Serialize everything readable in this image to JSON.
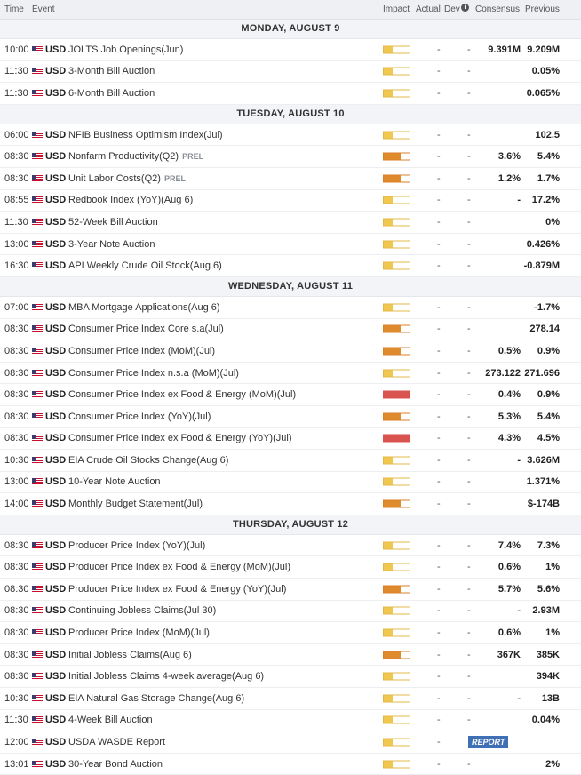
{
  "header": {
    "time": "Time",
    "event": "Event",
    "impact": "Impact",
    "actual": "Actual",
    "dev": "Dev",
    "info": "i",
    "consensus": "Consensus",
    "previous": "Previous"
  },
  "days": [
    {
      "label": "MONDAY, AUGUST 9",
      "events": [
        {
          "time": "10:00",
          "cur": "USD",
          "name": "JOLTS Job Openings(Jun)",
          "tag": "",
          "impact": "low",
          "actual": "-",
          "dev": "-",
          "cons": "9.391M",
          "prev": "9.209M"
        },
        {
          "time": "11:30",
          "cur": "USD",
          "name": "3-Month Bill Auction",
          "tag": "",
          "impact": "low",
          "actual": "-",
          "dev": "-",
          "cons": "",
          "prev": "0.05%"
        },
        {
          "time": "11:30",
          "cur": "USD",
          "name": "6-Month Bill Auction",
          "tag": "",
          "impact": "low",
          "actual": "-",
          "dev": "-",
          "cons": "",
          "prev": "0.065%"
        }
      ]
    },
    {
      "label": "TUESDAY, AUGUST 10",
      "events": [
        {
          "time": "06:00",
          "cur": "USD",
          "name": "NFIB Business Optimism Index(Jul)",
          "tag": "",
          "impact": "low",
          "actual": "-",
          "dev": "-",
          "cons": "",
          "prev": "102.5"
        },
        {
          "time": "08:30",
          "cur": "USD",
          "name": "Nonfarm Productivity(Q2)",
          "tag": "PREL",
          "impact": "med",
          "actual": "-",
          "dev": "-",
          "cons": "3.6%",
          "prev": "5.4%"
        },
        {
          "time": "08:30",
          "cur": "USD",
          "name": "Unit Labor Costs(Q2)",
          "tag": "PREL",
          "impact": "med",
          "actual": "-",
          "dev": "-",
          "cons": "1.2%",
          "prev": "1.7%"
        },
        {
          "time": "08:55",
          "cur": "USD",
          "name": "Redbook Index (YoY)(Aug 6)",
          "tag": "",
          "impact": "low",
          "actual": "-",
          "dev": "-",
          "cons": "-",
          "prev": "17.2%"
        },
        {
          "time": "11:30",
          "cur": "USD",
          "name": "52-Week Bill Auction",
          "tag": "",
          "impact": "low",
          "actual": "-",
          "dev": "-",
          "cons": "",
          "prev": "0%"
        },
        {
          "time": "13:00",
          "cur": "USD",
          "name": "3-Year Note Auction",
          "tag": "",
          "impact": "low",
          "actual": "-",
          "dev": "-",
          "cons": "",
          "prev": "0.426%"
        },
        {
          "time": "16:30",
          "cur": "USD",
          "name": "API Weekly Crude Oil Stock(Aug 6)",
          "tag": "",
          "impact": "low",
          "actual": "-",
          "dev": "-",
          "cons": "",
          "prev": "-0.879M"
        }
      ]
    },
    {
      "label": "WEDNESDAY, AUGUST 11",
      "events": [
        {
          "time": "07:00",
          "cur": "USD",
          "name": "MBA Mortgage Applications(Aug 6)",
          "tag": "",
          "impact": "low",
          "actual": "-",
          "dev": "-",
          "cons": "",
          "prev": "-1.7%"
        },
        {
          "time": "08:30",
          "cur": "USD",
          "name": "Consumer Price Index Core s.a(Jul)",
          "tag": "",
          "impact": "med",
          "actual": "-",
          "dev": "-",
          "cons": "",
          "prev": "278.14"
        },
        {
          "time": "08:30",
          "cur": "USD",
          "name": "Consumer Price Index (MoM)(Jul)",
          "tag": "",
          "impact": "med",
          "actual": "-",
          "dev": "-",
          "cons": "0.5%",
          "prev": "0.9%"
        },
        {
          "time": "08:30",
          "cur": "USD",
          "name": "Consumer Price Index n.s.a (MoM)(Jul)",
          "tag": "",
          "impact": "low",
          "actual": "-",
          "dev": "-",
          "cons": "273.122",
          "prev": "271.696"
        },
        {
          "time": "08:30",
          "cur": "USD",
          "name": "Consumer Price Index ex Food & Energy (MoM)(Jul)",
          "tag": "",
          "impact": "high",
          "actual": "-",
          "dev": "-",
          "cons": "0.4%",
          "prev": "0.9%"
        },
        {
          "time": "08:30",
          "cur": "USD",
          "name": "Consumer Price Index (YoY)(Jul)",
          "tag": "",
          "impact": "med",
          "actual": "-",
          "dev": "-",
          "cons": "5.3%",
          "prev": "5.4%"
        },
        {
          "time": "08:30",
          "cur": "USD",
          "name": "Consumer Price Index ex Food & Energy (YoY)(Jul)",
          "tag": "",
          "impact": "high",
          "actual": "-",
          "dev": "-",
          "cons": "4.3%",
          "prev": "4.5%"
        },
        {
          "time": "10:30",
          "cur": "USD",
          "name": "EIA Crude Oil Stocks Change(Aug 6)",
          "tag": "",
          "impact": "low",
          "actual": "-",
          "dev": "-",
          "cons": "-",
          "prev": "3.626M"
        },
        {
          "time": "13:00",
          "cur": "USD",
          "name": "10-Year Note Auction",
          "tag": "",
          "impact": "low",
          "actual": "-",
          "dev": "-",
          "cons": "",
          "prev": "1.371%"
        },
        {
          "time": "14:00",
          "cur": "USD",
          "name": "Monthly Budget Statement(Jul)",
          "tag": "",
          "impact": "med",
          "actual": "-",
          "dev": "-",
          "cons": "",
          "prev": "$-174B"
        }
      ]
    },
    {
      "label": "THURSDAY, AUGUST 12",
      "events": [
        {
          "time": "08:30",
          "cur": "USD",
          "name": "Producer Price Index (YoY)(Jul)",
          "tag": "",
          "impact": "low",
          "actual": "-",
          "dev": "-",
          "cons": "7.4%",
          "prev": "7.3%"
        },
        {
          "time": "08:30",
          "cur": "USD",
          "name": "Producer Price Index ex Food & Energy (MoM)(Jul)",
          "tag": "",
          "impact": "low",
          "actual": "-",
          "dev": "-",
          "cons": "0.6%",
          "prev": "1%"
        },
        {
          "time": "08:30",
          "cur": "USD",
          "name": "Producer Price Index ex Food & Energy (YoY)(Jul)",
          "tag": "",
          "impact": "med",
          "actual": "-",
          "dev": "-",
          "cons": "5.7%",
          "prev": "5.6%"
        },
        {
          "time": "08:30",
          "cur": "USD",
          "name": "Continuing Jobless Claims(Jul 30)",
          "tag": "",
          "impact": "low",
          "actual": "-",
          "dev": "-",
          "cons": "-",
          "prev": "2.93M"
        },
        {
          "time": "08:30",
          "cur": "USD",
          "name": "Producer Price Index (MoM)(Jul)",
          "tag": "",
          "impact": "low",
          "actual": "-",
          "dev": "-",
          "cons": "0.6%",
          "prev": "1%"
        },
        {
          "time": "08:30",
          "cur": "USD",
          "name": "Initial Jobless Claims(Aug 6)",
          "tag": "",
          "impact": "med",
          "actual": "-",
          "dev": "-",
          "cons": "367K",
          "prev": "385K"
        },
        {
          "time": "08:30",
          "cur": "USD",
          "name": "Initial Jobless Claims 4-week average(Aug 6)",
          "tag": "",
          "impact": "low",
          "actual": "-",
          "dev": "-",
          "cons": "",
          "prev": "394K"
        },
        {
          "time": "10:30",
          "cur": "USD",
          "name": "EIA Natural Gas Storage Change(Aug 6)",
          "tag": "",
          "impact": "low",
          "actual": "-",
          "dev": "-",
          "cons": "-",
          "prev": "13B"
        },
        {
          "time": "11:30",
          "cur": "USD",
          "name": "4-Week Bill Auction",
          "tag": "",
          "impact": "low",
          "actual": "-",
          "dev": "-",
          "cons": "",
          "prev": "0.04%"
        },
        {
          "time": "12:00",
          "cur": "USD",
          "name": "USDA WASDE Report",
          "tag": "",
          "impact": "low",
          "actual": "-",
          "dev": "",
          "cons": "",
          "prev": "",
          "report": "REPORT"
        },
        {
          "time": "13:01",
          "cur": "USD",
          "name": "30-Year Bond Auction",
          "tag": "",
          "impact": "low",
          "actual": "-",
          "dev": "-",
          "cons": "",
          "prev": "2%"
        }
      ]
    }
  ]
}
